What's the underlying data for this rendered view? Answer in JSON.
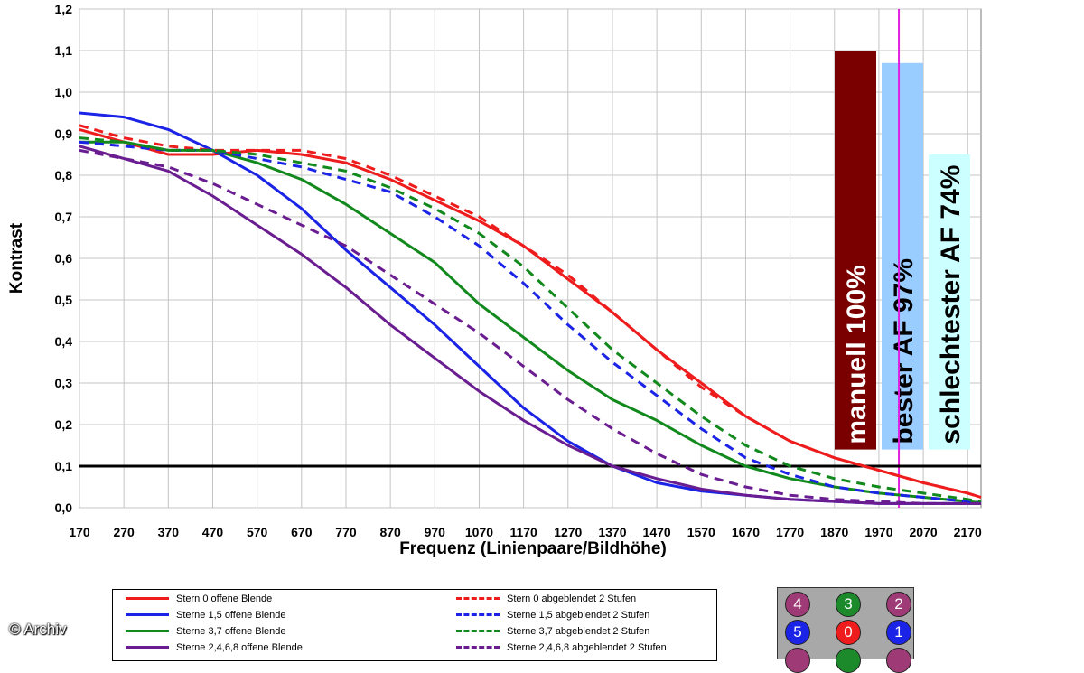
{
  "chart_data": {
    "type": "line",
    "title": "",
    "xlabel": "Frequenz (Linienpaare/Bildhöhe)",
    "ylabel": "Kontrast",
    "xlim": [
      170,
      2200
    ],
    "ylim": [
      0,
      1.2
    ],
    "x_ticks": [
      "170",
      "270",
      "370",
      "470",
      "570",
      "670",
      "770",
      "870",
      "970",
      "1070",
      "1170",
      "1270",
      "1370",
      "1470",
      "1570",
      "1670",
      "1770",
      "1870",
      "1970",
      "2070",
      "2170"
    ],
    "y_ticks": [
      "0,0",
      "0,1",
      "0,2",
      "0,3",
      "0,4",
      "0,5",
      "0,6",
      "0,7",
      "0,8",
      "0,9",
      "1,0",
      "1,1",
      "1,2"
    ],
    "grid": true,
    "reference_line_y": 0.1,
    "marker_line_x": 2015,
    "series": [
      {
        "name": "Stern 0 offene Blende",
        "color": "#ee1c1c",
        "dash": false,
        "x": [
          170,
          270,
          370,
          470,
          570,
          670,
          770,
          870,
          970,
          1070,
          1170,
          1270,
          1370,
          1470,
          1570,
          1670,
          1770,
          1870,
          1970,
          2070,
          2170,
          2200
        ],
        "y": [
          0.91,
          0.88,
          0.85,
          0.85,
          0.86,
          0.85,
          0.83,
          0.79,
          0.74,
          0.69,
          0.63,
          0.55,
          0.47,
          0.38,
          0.3,
          0.22,
          0.16,
          0.12,
          0.09,
          0.06,
          0.035,
          0.025
        ]
      },
      {
        "name": "Sterne 1,5 offene Blende",
        "color": "#1b24e6",
        "dash": false,
        "x": [
          170,
          270,
          370,
          470,
          570,
          670,
          770,
          870,
          970,
          1070,
          1170,
          1270,
          1370,
          1470,
          1570,
          1670,
          1770,
          1870,
          1970,
          2070,
          2170,
          2200
        ],
        "y": [
          0.95,
          0.94,
          0.91,
          0.86,
          0.8,
          0.72,
          0.62,
          0.53,
          0.44,
          0.34,
          0.24,
          0.16,
          0.1,
          0.06,
          0.04,
          0.03,
          0.02,
          0.015,
          0.01,
          0.01,
          0.01,
          0.01
        ]
      },
      {
        "name": "Sterne 3,7 offene Blende",
        "color": "#11891c",
        "dash": false,
        "x": [
          170,
          270,
          370,
          470,
          570,
          670,
          770,
          870,
          970,
          1070,
          1170,
          1270,
          1370,
          1470,
          1570,
          1670,
          1770,
          1870,
          1970,
          2070,
          2170,
          2200
        ],
        "y": [
          0.88,
          0.88,
          0.86,
          0.86,
          0.83,
          0.79,
          0.73,
          0.66,
          0.59,
          0.49,
          0.41,
          0.33,
          0.26,
          0.21,
          0.15,
          0.1,
          0.07,
          0.05,
          0.035,
          0.025,
          0.015,
          0.012
        ]
      },
      {
        "name": "Sterne 2,4,6,8 offene Blende",
        "color": "#6a1d90",
        "dash": false,
        "x": [
          170,
          270,
          370,
          470,
          570,
          670,
          770,
          870,
          970,
          1070,
          1170,
          1270,
          1370,
          1470,
          1570,
          1670,
          1770,
          1870,
          1970,
          2070,
          2170,
          2200
        ],
        "y": [
          0.87,
          0.84,
          0.81,
          0.75,
          0.68,
          0.61,
          0.53,
          0.44,
          0.36,
          0.28,
          0.21,
          0.15,
          0.1,
          0.07,
          0.045,
          0.03,
          0.02,
          0.015,
          0.01,
          0.01,
          0.01,
          0.01
        ]
      },
      {
        "name": "Stern 0 abgeblendet 2 Stufen",
        "color": "#ee1c1c",
        "dash": true,
        "x": [
          170,
          270,
          370,
          470,
          570,
          670,
          770,
          870,
          970,
          1070,
          1170,
          1270,
          1370,
          1470,
          1570,
          1670,
          1770,
          1870,
          1970,
          2070,
          2170,
          2200
        ],
        "y": [
          0.92,
          0.89,
          0.87,
          0.86,
          0.86,
          0.86,
          0.84,
          0.8,
          0.75,
          0.7,
          0.63,
          0.56,
          0.47,
          0.38,
          0.29,
          0.22,
          0.16,
          0.12,
          0.09,
          0.06,
          0.035,
          0.025
        ]
      },
      {
        "name": "Sterne 1,5 abgeblendet 2 Stufen",
        "color": "#1b24e6",
        "dash": true,
        "x": [
          170,
          270,
          370,
          470,
          570,
          670,
          770,
          870,
          970,
          1070,
          1170,
          1270,
          1370,
          1470,
          1570,
          1670,
          1770,
          1870,
          1970,
          2070,
          2170,
          2200
        ],
        "y": [
          0.88,
          0.87,
          0.86,
          0.86,
          0.84,
          0.82,
          0.79,
          0.76,
          0.7,
          0.63,
          0.54,
          0.44,
          0.35,
          0.27,
          0.19,
          0.12,
          0.08,
          0.05,
          0.035,
          0.025,
          0.015,
          0.012
        ]
      },
      {
        "name": "Sterne 3,7 abgeblendet 2 Stufen",
        "color": "#11891c",
        "dash": true,
        "x": [
          170,
          270,
          370,
          470,
          570,
          670,
          770,
          870,
          970,
          1070,
          1170,
          1270,
          1370,
          1470,
          1570,
          1670,
          1770,
          1870,
          1970,
          2070,
          2170,
          2200
        ],
        "y": [
          0.89,
          0.88,
          0.86,
          0.86,
          0.85,
          0.83,
          0.81,
          0.77,
          0.72,
          0.66,
          0.58,
          0.48,
          0.38,
          0.3,
          0.22,
          0.15,
          0.1,
          0.07,
          0.05,
          0.035,
          0.02,
          0.015
        ]
      },
      {
        "name": "Sterne 2,4,6,8 abgeblendet 2 Stufen",
        "color": "#6a1d90",
        "dash": true,
        "x": [
          170,
          270,
          370,
          470,
          570,
          670,
          770,
          870,
          970,
          1070,
          1170,
          1270,
          1370,
          1470,
          1570,
          1670,
          1770,
          1870,
          1970,
          2070,
          2170,
          2200
        ],
        "y": [
          0.86,
          0.84,
          0.82,
          0.78,
          0.73,
          0.68,
          0.63,
          0.56,
          0.49,
          0.42,
          0.34,
          0.26,
          0.19,
          0.13,
          0.08,
          0.05,
          0.03,
          0.02,
          0.015,
          0.01,
          0.01,
          0.01
        ]
      }
    ],
    "bars": [
      {
        "label": "manuell 100%",
        "value": 1.1,
        "color": "#7a0000",
        "text_color": "#ffffff"
      },
      {
        "label": "bester AF 97%",
        "value": 1.07,
        "color": "#99ccff",
        "text_color": "#000000"
      },
      {
        "label": "schlechtester AF 74%",
        "value": 0.85,
        "color": "#ccffff",
        "text_color": "#000000"
      }
    ],
    "bar_floor": 0.14
  },
  "star_key": {
    "background": "#a8a8a8",
    "dots": [
      {
        "label": "4",
        "color": "#9e3a76"
      },
      {
        "label": "3",
        "color": "#1c8a2a"
      },
      {
        "label": "2",
        "color": "#9e3a76"
      },
      {
        "label": "5",
        "color": "#1b24e6"
      },
      {
        "label": "0",
        "color": "#ee1c1c"
      },
      {
        "label": "1",
        "color": "#1b24e6"
      },
      {
        "label": "",
        "color": "#9e3a76"
      },
      {
        "label": "",
        "color": "#1c8a2a"
      },
      {
        "label": "",
        "color": "#9e3a76"
      }
    ]
  },
  "credit": "© Archiv"
}
